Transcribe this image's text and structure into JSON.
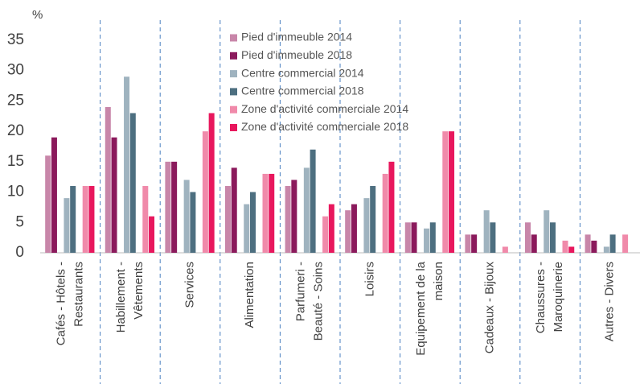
{
  "chart_data": {
    "type": "bar",
    "y_axis_label": "%",
    "categories": [
      "Cafés - Hôtels - Restaurants",
      "Habillement - Vêtements",
      "Services",
      "Alimentation",
      "Parfumeri - Beauté - Soins",
      "Loisirs",
      "Equipement de la maison",
      "Cadeaux - Bijoux",
      "Chaussures - Maroquinerie",
      "Autres - Divers"
    ],
    "series": [
      {
        "name": "Pied d'immeuble 2014",
        "color": "#c886a9",
        "values": [
          16,
          24,
          15,
          11,
          11,
          7,
          5,
          3,
          5,
          3
        ]
      },
      {
        "name": "Pied d'immeuble 2018",
        "color": "#8b1a5c",
        "values": [
          19,
          19,
          15,
          14,
          12,
          8,
          5,
          3,
          3,
          2
        ]
      },
      {
        "name": "Centre commercial 2014",
        "color": "#9fb3bf",
        "values": [
          9,
          29,
          12,
          8,
          14,
          9,
          4,
          7,
          7,
          1
        ]
      },
      {
        "name": "Centre commercial 2018",
        "color": "#4d6f80",
        "values": [
          11,
          23,
          10,
          10,
          17,
          11,
          5,
          5,
          5,
          3
        ]
      },
      {
        "name": "Zone d'activité commerciale 2014",
        "color": "#f08aaa",
        "values": [
          11,
          11,
          20,
          13,
          6,
          13,
          20,
          1,
          2,
          3
        ]
      },
      {
        "name": "Zone d'activité commerciale 2018",
        "color": "#e8175d",
        "values": [
          11,
          6,
          23,
          13,
          8,
          15,
          20,
          0,
          1,
          0
        ]
      }
    ],
    "ylim": [
      0,
      35
    ],
    "yticks": [
      0,
      5,
      10,
      15,
      20,
      25,
      30,
      35
    ],
    "grid": false
  }
}
